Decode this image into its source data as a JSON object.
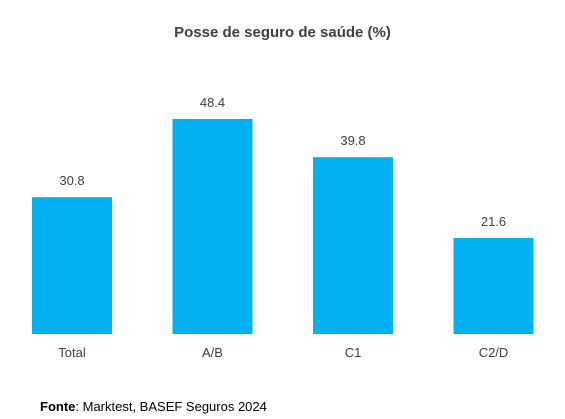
{
  "chart_data": {
    "type": "bar",
    "title": "Posse de seguro de saúde (%)",
    "categories": [
      "Total",
      "A/B",
      "C1",
      "C2/D"
    ],
    "values": [
      30.8,
      48.4,
      39.8,
      21.6
    ],
    "data_labels": [
      "30.8",
      "48.4",
      "39.8",
      "21.6"
    ],
    "xlabel": "",
    "ylabel": "",
    "ylim": [
      0,
      55
    ],
    "grid": false,
    "legend": "none",
    "bar_color": "#00B0F0"
  },
  "source": {
    "label": "Fonte",
    "text": ": Marktest, BASEF Seguros 2024"
  }
}
